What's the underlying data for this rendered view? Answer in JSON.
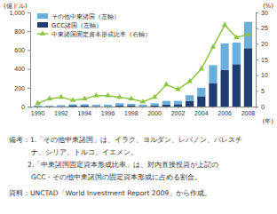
{
  "chart_data": {
    "type": "bar",
    "stacked": true,
    "legend": "upper left",
    "grid": false,
    "y_label": "(億ドル)",
    "y2_label": "(%)",
    "x_label": "(年)",
    "categories": [
      "1990",
      null,
      "1992",
      null,
      "1994",
      null,
      "1996",
      null,
      "1998",
      null,
      "2000",
      null,
      "2002",
      null,
      "2004",
      null,
      "2006",
      null,
      "2008"
    ],
    "series": [
      {
        "name": "その他中東諸国（左軸）",
        "type": "bar",
        "color": "#6aaedb",
        "values": [
          5,
          5,
          10,
          15,
          15,
          15,
          15,
          25,
          20,
          15,
          25,
          40,
          35,
          60,
          90,
          190,
          280,
          230,
          280
        ]
      },
      {
        "name": "GCC諸国（左軸）",
        "type": "bar",
        "color": "#1f3d72",
        "values": [
          5,
          5,
          5,
          10,
          10,
          5,
          5,
          10,
          10,
          5,
          10,
          20,
          25,
          60,
          110,
          250,
          390,
          450,
          620
        ]
      },
      {
        "name": "中東諸国固定資本形成比率（右軸）",
        "type": "line",
        "axis": "y2",
        "color": "#8cc63f",
        "marker": "triangle",
        "line_style": "solid",
        "values": [
          1,
          2.5,
          3,
          2,
          2.5,
          3.5,
          3.5,
          3,
          2.5,
          1.5,
          3,
          7,
          5.5,
          8,
          12,
          19,
          26,
          22,
          23
        ]
      }
    ],
    "ylim": [
      0,
      1000
    ],
    "yticks": [
      0,
      200,
      400,
      600,
      800,
      {
        "value": 1000,
        "label": "1,000"
      }
    ],
    "y2lim": [
      0,
      30
    ],
    "y2ticks": [
      0,
      5,
      10,
      15,
      20,
      25,
      30
    ],
    "annotations": [
      "備考：1.「その他中東諸国」は、イラク、ヨルダン、レバノン、パレスチ",
      "ナ、シリア、トルコ、イエメン。",
      "2.「中東諸国固定資本形成比率」は、対内直接投資が上記の",
      "GCC・その他中東諸国の固定資本形成に占める割合。",
      "資料：UNCTAD「World Investment Report 2009」から作成。"
    ]
  }
}
